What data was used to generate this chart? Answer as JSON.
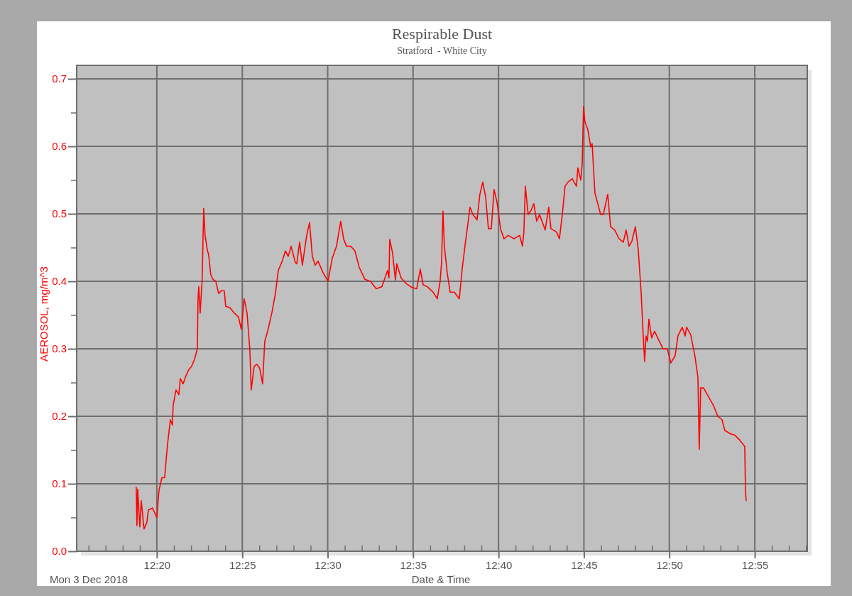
{
  "chart_data": {
    "type": "line",
    "title": "Respirable Dust",
    "subtitle": "Stratford  - White City",
    "xlabel": "Date & Time",
    "ylabel": "AEROSOL, mg/m^3",
    "annotations": [
      "Mon 3 Dec 2018"
    ],
    "grid": true,
    "marker": "none",
    "line_style": "solid",
    "xlim": [
      12.2551,
      12.9679
    ],
    "ylim": [
      0,
      0.72
    ],
    "xticks": [
      {
        "value": 12.2667,
        "label": null
      },
      {
        "value": 12.2833,
        "label": null
      },
      {
        "value": 12.3,
        "label": null
      },
      {
        "value": 12.3167,
        "label": null
      },
      {
        "value": 12.3333,
        "label": "12:20"
      },
      {
        "value": 12.35,
        "label": null
      },
      {
        "value": 12.3667,
        "label": null
      },
      {
        "value": 12.3833,
        "label": null
      },
      {
        "value": 12.4,
        "label": null
      },
      {
        "value": 12.4167,
        "label": "12:25"
      },
      {
        "value": 12.4333,
        "label": null
      },
      {
        "value": 12.45,
        "label": null
      },
      {
        "value": 12.4667,
        "label": null
      },
      {
        "value": 12.4833,
        "label": null
      },
      {
        "value": 12.5,
        "label": "12:30"
      },
      {
        "value": 12.5167,
        "label": null
      },
      {
        "value": 12.5333,
        "label": null
      },
      {
        "value": 12.55,
        "label": null
      },
      {
        "value": 12.5667,
        "label": null
      },
      {
        "value": 12.5833,
        "label": "12:35"
      },
      {
        "value": 12.6,
        "label": null
      },
      {
        "value": 12.6167,
        "label": null
      },
      {
        "value": 12.6333,
        "label": null
      },
      {
        "value": 12.65,
        "label": null
      },
      {
        "value": 12.6667,
        "label": "12:40"
      },
      {
        "value": 12.6833,
        "label": null
      },
      {
        "value": 12.7,
        "label": null
      },
      {
        "value": 12.7167,
        "label": null
      },
      {
        "value": 12.7333,
        "label": null
      },
      {
        "value": 12.75,
        "label": "12:45"
      },
      {
        "value": 12.7667,
        "label": null
      },
      {
        "value": 12.7833,
        "label": null
      },
      {
        "value": 12.8,
        "label": null
      },
      {
        "value": 12.8167,
        "label": null
      },
      {
        "value": 12.8333,
        "label": "12:50"
      },
      {
        "value": 12.85,
        "label": null
      },
      {
        "value": 12.8667,
        "label": null
      },
      {
        "value": 12.8833,
        "label": null
      },
      {
        "value": 12.9,
        "label": null
      },
      {
        "value": 12.9167,
        "label": "12:55"
      },
      {
        "value": 12.9333,
        "label": null
      },
      {
        "value": 12.95,
        "label": null
      },
      {
        "value": 12.9667,
        "label": null
      }
    ],
    "yticks": [
      {
        "value": 0,
        "label": "0.0"
      },
      {
        "value": 0.05,
        "label": null
      },
      {
        "value": 0.1,
        "label": "0.1"
      },
      {
        "value": 0.15,
        "label": null
      },
      {
        "value": 0.2,
        "label": "0.2"
      },
      {
        "value": 0.25,
        "label": null
      },
      {
        "value": 0.3,
        "label": "0.3"
      },
      {
        "value": 0.35,
        "label": null
      },
      {
        "value": 0.4,
        "label": "0.4"
      },
      {
        "value": 0.45,
        "label": null
      },
      {
        "value": 0.5,
        "label": "0.5"
      },
      {
        "value": 0.55,
        "label": null
      },
      {
        "value": 0.6,
        "label": "0.6"
      },
      {
        "value": 0.65,
        "label": null
      },
      {
        "value": 0.7,
        "label": "0.7"
      }
    ],
    "series": [
      {
        "color": "#ff0000",
        "x": [
          12.3132,
          12.3139,
          12.3146,
          12.3167,
          12.3181,
          12.3208,
          12.3236,
          12.325,
          12.3291,
          12.3333,
          12.3354,
          12.3382,
          12.3409,
          12.3437,
          12.3465,
          12.3485,
          12.3492,
          12.352,
          12.3548,
          12.3562,
          12.3589,
          12.3617,
          12.3645,
          12.3672,
          12.37,
          12.3728,
          12.3735,
          12.3742,
          12.3756,
          12.3776,
          12.379,
          12.3804,
          12.3825,
          12.3839,
          12.3859,
          12.388,
          12.3908,
          12.3936,
          12.3963,
          12.3991,
          12.4005,
          12.4046,
          12.4088,
          12.413,
          12.4157,
          12.4185,
          12.4213,
          12.424,
          12.4254,
          12.4282,
          12.431,
          12.4337,
          12.4365,
          12.4386,
          12.4414,
          12.4455,
          12.449,
          12.4518,
          12.4559,
          12.4587,
          12.4615,
          12.4643,
          12.4684,
          12.4698,
          12.4726,
          12.4753,
          12.4795,
          12.4823,
          12.485,
          12.4878,
          12.4906,
          12.4954,
          12.5003,
          12.5044,
          12.5086,
          12.5127,
          12.5155,
          12.5183,
          12.5224,
          12.5266,
          12.5307,
          12.5363,
          12.5418,
          12.5473,
          12.5529,
          12.5584,
          12.5598,
          12.5605,
          12.5633,
          12.5661,
          12.5674,
          12.5716,
          12.5764,
          12.582,
          12.5869,
          12.5903,
          12.5931,
          12.5972,
          12.6028,
          12.6069,
          12.6097,
          12.6111,
          12.6125,
          12.6138,
          12.6166,
          12.6194,
          12.6235,
          12.6284,
          12.6312,
          12.6339,
          12.6367,
          12.6388,
          12.6416,
          12.6457,
          12.6485,
          12.6513,
          12.654,
          12.6568,
          12.6596,
          12.6623,
          12.6651,
          12.6686,
          12.672,
          12.6762,
          12.6817,
          12.6873,
          12.69,
          12.6914,
          12.6928,
          12.6956,
          12.6984,
          12.7011,
          12.7039,
          12.7067,
          12.7122,
          12.7157,
          12.7178,
          12.7233,
          12.7261,
          12.7289,
          12.7316,
          12.7344,
          12.7386,
          12.7427,
          12.7441,
          12.7469,
          12.7483,
          12.7496,
          12.751,
          12.7538,
          12.7566,
          12.758,
          12.7607,
          12.7635,
          12.7663,
          12.769,
          12.7732,
          12.776,
          12.7801,
          12.7843,
          12.7884,
          12.7912,
          12.794,
          12.7967,
          12.8002,
          12.803,
          12.8058,
          12.8078,
          12.8092,
          12.8106,
          12.812,
          12.8134,
          12.8161,
          12.8189,
          12.823,
          12.8272,
          12.8314,
          12.8348,
          12.839,
          12.8417,
          12.8459,
          12.8487,
          12.8501,
          12.8542,
          12.8584,
          12.8612,
          12.8625,
          12.8639,
          12.8667,
          12.8723,
          12.8764,
          12.8806,
          12.8847,
          12.8875,
          12.893,
          12.8972,
          12.9013,
          12.9055,
          12.9069,
          12.9076,
          12.9083
        ],
        "values": [
          0.095,
          0.038,
          0.092,
          0.036,
          0.075,
          0.033,
          0.043,
          0.061,
          0.064,
          0.05,
          0.09,
          0.109,
          0.109,
          0.158,
          0.195,
          0.187,
          0.216,
          0.239,
          0.232,
          0.256,
          0.248,
          0.26,
          0.269,
          0.274,
          0.284,
          0.3,
          0.374,
          0.392,
          0.353,
          0.405,
          0.508,
          0.468,
          0.447,
          0.439,
          0.41,
          0.403,
          0.4,
          0.382,
          0.386,
          0.386,
          0.363,
          0.361,
          0.353,
          0.347,
          0.329,
          0.374,
          0.353,
          0.3,
          0.239,
          0.274,
          0.277,
          0.271,
          0.248,
          0.311,
          0.326,
          0.353,
          0.382,
          0.416,
          0.431,
          0.445,
          0.437,
          0.452,
          0.428,
          0.426,
          0.458,
          0.424,
          0.468,
          0.487,
          0.437,
          0.424,
          0.43,
          0.413,
          0.4,
          0.434,
          0.452,
          0.489,
          0.463,
          0.452,
          0.452,
          0.445,
          0.421,
          0.403,
          0.4,
          0.389,
          0.392,
          0.416,
          0.405,
          0.462,
          0.442,
          0.402,
          0.426,
          0.405,
          0.397,
          0.391,
          0.389,
          0.418,
          0.395,
          0.392,
          0.384,
          0.374,
          0.4,
          0.428,
          0.504,
          0.452,
          0.413,
          0.384,
          0.384,
          0.374,
          0.418,
          0.452,
          0.484,
          0.51,
          0.499,
          0.491,
          0.529,
          0.547,
          0.526,
          0.478,
          0.478,
          0.536,
          0.518,
          0.478,
          0.463,
          0.468,
          0.463,
          0.468,
          0.452,
          0.473,
          0.541,
          0.499,
          0.505,
          0.515,
          0.489,
          0.499,
          0.476,
          0.51,
          0.478,
          0.473,
          0.463,
          0.499,
          0.541,
          0.547,
          0.552,
          0.541,
          0.568,
          0.55,
          0.573,
          0.659,
          0.636,
          0.625,
          0.599,
          0.604,
          0.531,
          0.515,
          0.499,
          0.499,
          0.529,
          0.481,
          0.476,
          0.463,
          0.458,
          0.476,
          0.452,
          0.459,
          0.481,
          0.447,
          0.384,
          0.321,
          0.281,
          0.319,
          0.311,
          0.344,
          0.316,
          0.326,
          0.313,
          0.3,
          0.3,
          0.279,
          0.29,
          0.319,
          0.332,
          0.319,
          0.332,
          0.321,
          0.288,
          0.258,
          0.151,
          0.242,
          0.242,
          0.227,
          0.216,
          0.2,
          0.195,
          0.179,
          0.174,
          0.172,
          0.166,
          0.158,
          0.155,
          0.09,
          0.075
        ]
      }
    ]
  }
}
